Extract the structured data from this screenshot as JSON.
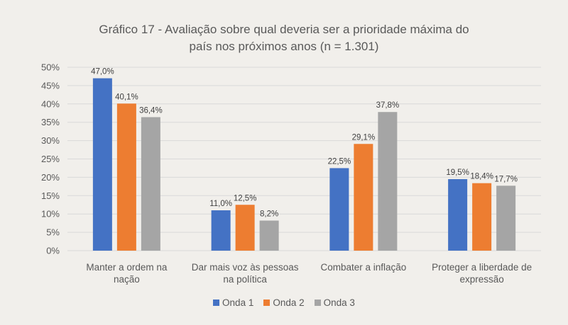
{
  "chart_data": {
    "type": "bar",
    "title": "Gráfico 17 - Avaliação sobre qual deveria ser a prioridade máxima do país nos próximos anos (n = 1.301)",
    "title_lines": [
      "Gráfico 17 - Avaliação sobre qual deveria ser a prioridade máxima do",
      "país nos próximos anos (n = 1.301)"
    ],
    "xlabel": "",
    "ylabel": "",
    "ylim": [
      0,
      50
    ],
    "yticks": [
      0,
      5,
      10,
      15,
      20,
      25,
      30,
      35,
      40,
      45,
      50
    ],
    "ytick_labels": [
      "0%",
      "5%",
      "10%",
      "15%",
      "20%",
      "25%",
      "30%",
      "35%",
      "40%",
      "45%",
      "50%"
    ],
    "grid": true,
    "legend_position": "bottom",
    "categories": [
      [
        "Manter a ordem na",
        "nação"
      ],
      [
        "Dar mais voz às pessoas",
        "na política"
      ],
      [
        "Combater a inflação"
      ],
      [
        "Proteger a liberdade de",
        "expressão"
      ]
    ],
    "series": [
      {
        "name": "Onda 1",
        "color": "#4472c4",
        "values": [
          47.0,
          11.0,
          22.5,
          19.5
        ],
        "labels": [
          "47,0%",
          "11,0%",
          "22,5%",
          "19,5%"
        ]
      },
      {
        "name": "Onda 2",
        "color": "#ed7d31",
        "values": [
          40.1,
          12.5,
          29.1,
          18.4
        ],
        "labels": [
          "40,1%",
          "12,5%",
          "29,1%",
          "18,4%"
        ]
      },
      {
        "name": "Onda 3",
        "color": "#a5a5a5",
        "values": [
          36.4,
          8.2,
          37.8,
          17.7
        ],
        "labels": [
          "36,4%",
          "8,2%",
          "37,8%",
          "17,7%"
        ]
      }
    ]
  },
  "colors": {
    "background": "#f1efeb",
    "gridline": "#d9d9d9"
  }
}
